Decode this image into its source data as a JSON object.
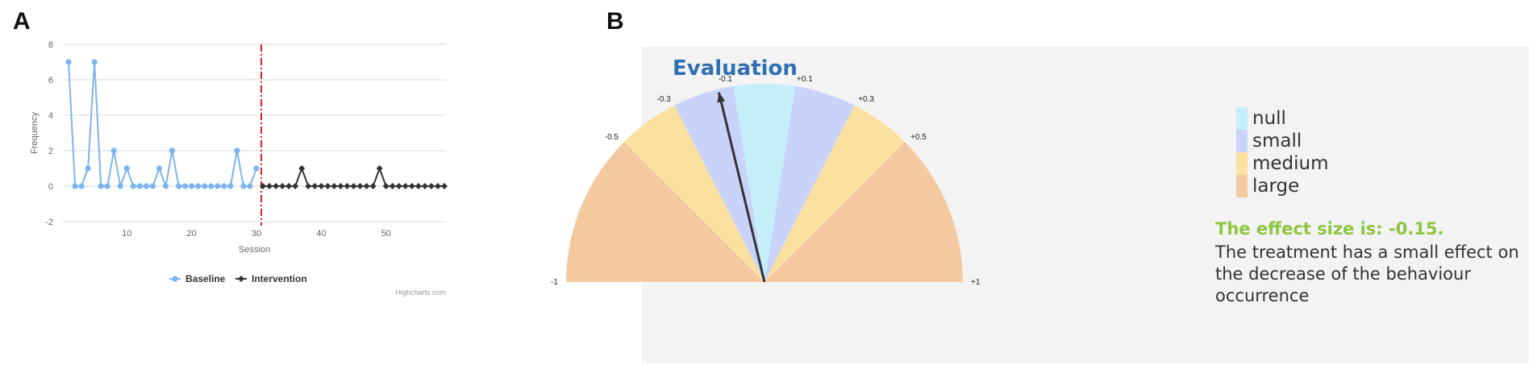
{
  "panels": {
    "a_label": "A",
    "b_label": "B"
  },
  "chart_data": [
    {
      "type": "line",
      "title": "",
      "xlabel": "Session",
      "ylabel": "Frequency",
      "ylim": [
        -2,
        8
      ],
      "xlim": [
        1,
        59
      ],
      "yticks": [
        "-2",
        "0",
        "2",
        "4",
        "6",
        "8"
      ],
      "xticks": [
        "10",
        "20",
        "30",
        "40",
        "50"
      ],
      "grid": true,
      "legend_position": "bottom-center",
      "phase_change_at": 31,
      "credit": "Highcharts.com",
      "series": [
        {
          "name": "Baseline",
          "color": "#7cb5ec",
          "x": [
            1,
            2,
            3,
            4,
            5,
            6,
            7,
            8,
            9,
            10,
            11,
            12,
            13,
            14,
            15,
            16,
            17,
            18,
            19,
            20,
            21,
            22,
            23,
            24,
            25,
            26,
            27,
            28,
            29,
            30
          ],
          "y": [
            7,
            0,
            0,
            1,
            7,
            0,
            0,
            2,
            0,
            1,
            0,
            0,
            0,
            0,
            1,
            0,
            2,
            0,
            0,
            0,
            0,
            0,
            0,
            0,
            0,
            0,
            2,
            0,
            0,
            1
          ]
        },
        {
          "name": "Intervention",
          "color": "#333333",
          "x": [
            31,
            32,
            33,
            34,
            35,
            36,
            37,
            38,
            39,
            40,
            41,
            42,
            43,
            44,
            45,
            46,
            47,
            48,
            49,
            50,
            51,
            52,
            53,
            54,
            55,
            56,
            57,
            58,
            59
          ],
          "y": [
            0,
            0,
            0,
            0,
            0,
            0,
            1,
            0,
            0,
            0,
            0,
            0,
            0,
            0,
            0,
            0,
            0,
            0,
            1,
            0,
            0,
            0,
            0,
            0,
            0,
            0,
            0,
            0,
            0
          ]
        }
      ]
    },
    {
      "type": "gauge",
      "title": "Evaluation",
      "range": [
        -1,
        1
      ],
      "value": -0.15,
      "tick_labels": [
        "-1",
        "-0.5",
        "-0.3",
        "-0.1",
        "+0.1",
        "+0.3",
        "+0.5",
        "+1"
      ],
      "bands": [
        {
          "from": -1,
          "to": -0.5,
          "category": "large",
          "color": "#f5c9a0"
        },
        {
          "from": -0.5,
          "to": -0.3,
          "category": "medium",
          "color": "#fbe0a0"
        },
        {
          "from": -0.3,
          "to": -0.1,
          "category": "small",
          "color": "#c9d3fa"
        },
        {
          "from": -0.1,
          "to": 0.1,
          "category": "null",
          "color": "#c4eef8"
        },
        {
          "from": 0.1,
          "to": 0.3,
          "category": "small",
          "color": "#c9d3fa"
        },
        {
          "from": 0.3,
          "to": 0.5,
          "category": "medium",
          "color": "#fbe0a0"
        },
        {
          "from": 0.5,
          "to": 1,
          "category": "large",
          "color": "#f5c9a0"
        }
      ],
      "legend": [
        {
          "label": "null",
          "color": "#c4eef8"
        },
        {
          "label": "small",
          "color": "#c9d3fa"
        },
        {
          "label": "medium",
          "color": "#fbe0a0"
        },
        {
          "label": "large",
          "color": "#f5c9a0"
        }
      ],
      "effect_title": "The effect size is: -0.15.",
      "effect_text": "The treatment has a small effect on the decrease of the behaviour occurrence"
    }
  ]
}
